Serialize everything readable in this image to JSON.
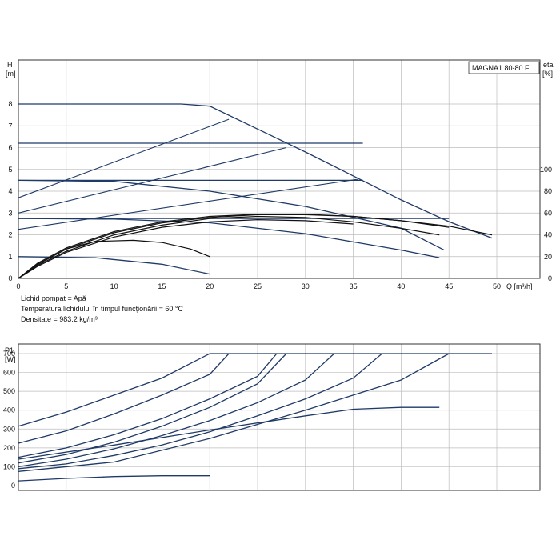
{
  "chart_data": [
    {
      "type": "line",
      "title": "MAGNA1 80-80 F",
      "ylabel_h": "H",
      "ylabel_h_unit": "[m]",
      "ylabel_eta": "eta",
      "ylabel_eta_unit": "[%]",
      "xlabel": "Q [m³/h]",
      "xlim": [
        0,
        50
      ],
      "ylim": [
        0,
        9
      ],
      "eta_lim": [
        0,
        100
      ],
      "x_ticks": [
        0,
        5,
        10,
        15,
        20,
        25,
        30,
        35,
        40,
        45,
        50
      ],
      "y_ticks": [
        0,
        1,
        2,
        3,
        4,
        5,
        6,
        7,
        8
      ],
      "eta_ticks": [
        0,
        20,
        40,
        60,
        80,
        100
      ],
      "grid": true,
      "notes": [
        "Lichid pompat = Apă",
        "Temperatura lichidului în timpul funcționării = 60 °C",
        "Densitate = 983.2 kg/m³"
      ],
      "head_curves": [
        {
          "points": [
            [
              0,
              8.0
            ],
            [
              12,
              8.0
            ],
            [
              17,
              8.0
            ],
            [
              20,
              7.9
            ],
            [
              25,
              6.85
            ],
            [
              30,
              5.8
            ],
            [
              35,
              4.7
            ],
            [
              40,
              3.6
            ],
            [
              45,
              2.6
            ],
            [
              49.5,
              1.85
            ]
          ]
        },
        {
          "points": [
            [
              0,
              6.2
            ],
            [
              36,
              6.2
            ]
          ]
        },
        {
          "points": [
            [
              0,
              4.5
            ],
            [
              36,
              4.5
            ]
          ]
        },
        {
          "points": [
            [
              0,
              4.5
            ],
            [
              10,
              4.45
            ],
            [
              20,
              4.0
            ],
            [
              30,
              3.3
            ],
            [
              40,
              2.3
            ],
            [
              44.5,
              1.3
            ]
          ]
        },
        {
          "points": [
            [
              0,
              2.75
            ],
            [
              45,
              2.75
            ]
          ]
        },
        {
          "points": [
            [
              0,
              2.75
            ],
            [
              10,
              2.72
            ],
            [
              20,
              2.55
            ],
            [
              30,
              2.05
            ],
            [
              40,
              1.3
            ],
            [
              44,
              0.95
            ]
          ]
        },
        {
          "points": [
            [
              0,
              1.0
            ],
            [
              8,
              0.95
            ],
            [
              15,
              0.65
            ],
            [
              20,
              0.2
            ]
          ]
        }
      ],
      "system_curves": [
        {
          "points": [
            [
              0,
              3.7
            ],
            [
              22,
              7.3
            ]
          ]
        },
        {
          "points": [
            [
              0,
              3.0
            ],
            [
              28,
              6.0
            ]
          ]
        },
        {
          "points": [
            [
              0,
              2.25
            ],
            [
              35.5,
              4.55
            ]
          ]
        }
      ],
      "eta_curves": [
        {
          "points": [
            [
              0,
              0
            ],
            [
              2,
              14
            ],
            [
              5,
              28
            ],
            [
              10,
              43
            ],
            [
              15,
              52
            ],
            [
              20,
              57
            ],
            [
              25,
              59
            ],
            [
              30,
              59
            ],
            [
              35,
              57
            ],
            [
              40,
              53
            ],
            [
              45,
              48
            ],
            [
              49.5,
              40
            ]
          ]
        },
        {
          "points": [
            [
              0,
              0
            ],
            [
              2,
              13
            ],
            [
              5,
              27
            ],
            [
              10,
              42
            ],
            [
              15,
              51
            ],
            [
              20,
              56
            ],
            [
              25,
              58.5
            ],
            [
              30,
              58.5
            ],
            [
              35,
              57
            ],
            [
              40,
              53
            ],
            [
              45,
              47
            ]
          ]
        },
        {
          "points": [
            [
              0,
              0
            ],
            [
              2,
              12
            ],
            [
              5,
              25
            ],
            [
              10,
              40
            ],
            [
              15,
              49
            ],
            [
              20,
              55
            ],
            [
              25,
              57
            ],
            [
              30,
              56
            ],
            [
              35,
              52
            ],
            [
              40,
              46
            ],
            [
              44,
              40
            ]
          ]
        },
        {
          "points": [
            [
              0,
              0
            ],
            [
              2,
              11
            ],
            [
              5,
              24
            ],
            [
              10,
              38
            ],
            [
              15,
              47
            ],
            [
              20,
              52
            ],
            [
              25,
              54
            ],
            [
              30,
              53
            ],
            [
              35,
              50
            ]
          ]
        },
        {
          "points": [
            [
              0,
              0
            ],
            [
              2,
              13
            ],
            [
              5,
              27
            ],
            [
              8,
              34
            ],
            [
              12,
              35
            ],
            [
              15,
              33
            ],
            [
              18,
              27
            ],
            [
              20,
              20
            ]
          ]
        }
      ]
    },
    {
      "type": "line",
      "ylabel": "P1",
      "ylabel_unit": "[W]",
      "xlim": [
        0,
        50
      ],
      "ylim": [
        0,
        750
      ],
      "y_ticks": [
        0,
        100,
        200,
        300,
        400,
        500,
        600,
        700
      ],
      "grid": true,
      "power_curves": [
        {
          "points": [
            [
              0,
              315
            ],
            [
              5,
              390
            ],
            [
              10,
              480
            ],
            [
              15,
              570
            ],
            [
              20,
              700
            ],
            [
              49.5,
              700
            ]
          ]
        },
        {
          "points": [
            [
              0,
              225
            ],
            [
              5,
              290
            ],
            [
              10,
              380
            ],
            [
              15,
              480
            ],
            [
              20,
              590
            ],
            [
              22,
              700
            ]
          ]
        },
        {
          "points": [
            [
              0,
              150
            ],
            [
              5,
              200
            ],
            [
              10,
              270
            ],
            [
              15,
              355
            ],
            [
              20,
              460
            ],
            [
              25,
              580
            ],
            [
              27,
              700
            ]
          ]
        },
        {
          "points": [
            [
              0,
              120
            ],
            [
              5,
              165
            ],
            [
              10,
              230
            ],
            [
              15,
              315
            ],
            [
              20,
              415
            ],
            [
              25,
              540
            ],
            [
              28,
              700
            ]
          ]
        },
        {
          "points": [
            [
              0,
              100
            ],
            [
              5,
              140
            ],
            [
              10,
              195
            ],
            [
              15,
              265
            ],
            [
              20,
              345
            ],
            [
              25,
              440
            ],
            [
              30,
              560
            ],
            [
              33,
              700
            ]
          ]
        },
        {
          "points": [
            [
              0,
              90
            ],
            [
              5,
              115
            ],
            [
              10,
              160
            ],
            [
              15,
              215
            ],
            [
              20,
              285
            ],
            [
              25,
              370
            ],
            [
              30,
              460
            ],
            [
              35,
              570
            ],
            [
              38,
              700
            ]
          ]
        },
        {
          "points": [
            [
              0,
              75
            ],
            [
              10,
              125
            ],
            [
              20,
              250
            ],
            [
              30,
              400
            ],
            [
              40,
              560
            ],
            [
              45,
              700
            ]
          ]
        },
        {
          "points": [
            [
              0,
              140
            ],
            [
              10,
              215
            ],
            [
              20,
              295
            ],
            [
              30,
              370
            ],
            [
              35,
              405
            ],
            [
              40,
              415
            ],
            [
              44,
              415
            ]
          ]
        },
        {
          "points": [
            [
              0,
              25
            ],
            [
              5,
              38
            ],
            [
              10,
              48
            ],
            [
              15,
              52
            ],
            [
              20,
              52
            ]
          ]
        }
      ]
    }
  ]
}
